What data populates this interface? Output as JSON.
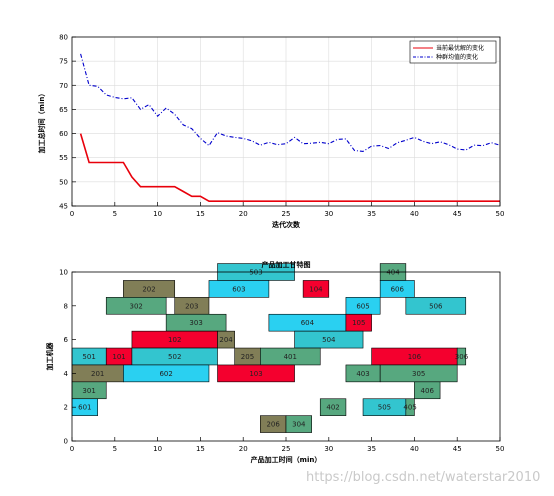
{
  "watermark": "https://blog.csdn.net/waterstar2010",
  "chart_data": [
    {
      "type": "line",
      "xlabel": "迭代次数",
      "ylabel": "加工总时间（min）",
      "xlim": [
        0,
        50
      ],
      "ylim": [
        45,
        80
      ],
      "xticks": [
        0,
        5,
        10,
        15,
        20,
        25,
        30,
        35,
        40,
        45,
        50
      ],
      "yticks": [
        45,
        50,
        55,
        60,
        65,
        70,
        75,
        80
      ],
      "grid": true,
      "legend_position": "top-right",
      "series": [
        {
          "name": "当前最优解的变化",
          "color": "#e8000b",
          "style": "solid",
          "points": [
            [
              1,
              60
            ],
            [
              2,
              54
            ],
            [
              3,
              54
            ],
            [
              4,
              54
            ],
            [
              5,
              54
            ],
            [
              6,
              54
            ],
            [
              7,
              51
            ],
            [
              8,
              49
            ],
            [
              9,
              49
            ],
            [
              10,
              49
            ],
            [
              11,
              49
            ],
            [
              12,
              49
            ],
            [
              13,
              48
            ],
            [
              14,
              47
            ],
            [
              15,
              47
            ],
            [
              16,
              46
            ],
            [
              17,
              46
            ],
            [
              18,
              46
            ],
            [
              19,
              46
            ],
            [
              20,
              46
            ],
            [
              25,
              46
            ],
            [
              30,
              46
            ],
            [
              35,
              46
            ],
            [
              40,
              46
            ],
            [
              45,
              46
            ],
            [
              50,
              46
            ]
          ]
        },
        {
          "name": "种群均值的变化",
          "color": "#0000cc",
          "style": "dashdot",
          "points": [
            [
              1,
              76.5
            ],
            [
              2,
              70
            ],
            [
              3,
              69.8
            ],
            [
              4,
              68
            ],
            [
              5,
              67.5
            ],
            [
              6,
              67.2
            ],
            [
              7,
              67.4
            ],
            [
              8,
              65
            ],
            [
              9,
              66
            ],
            [
              10,
              63.6
            ],
            [
              11,
              65.3
            ],
            [
              12,
              64
            ],
            [
              13,
              61.8
            ],
            [
              14,
              61
            ],
            [
              15,
              59
            ],
            [
              16,
              57.5
            ],
            [
              17,
              60.2
            ],
            [
              18,
              59.5
            ],
            [
              19,
              59.2
            ],
            [
              20,
              59
            ],
            [
              21,
              58.5
            ],
            [
              22,
              57.6
            ],
            [
              23,
              58.2
            ],
            [
              24,
              57.7
            ],
            [
              25,
              57.9
            ],
            [
              26,
              59.2
            ],
            [
              27,
              57.9
            ],
            [
              28,
              58
            ],
            [
              29,
              58.2
            ],
            [
              30,
              57.9
            ],
            [
              31,
              58.8
            ],
            [
              32,
              58.9
            ],
            [
              33,
              56.5
            ],
            [
              34,
              56.3
            ],
            [
              35,
              57.4
            ],
            [
              36,
              57.5
            ],
            [
              37,
              56.9
            ],
            [
              38,
              58.1
            ],
            [
              39,
              58.6
            ],
            [
              40,
              59.2
            ],
            [
              41,
              58.4
            ],
            [
              42,
              57.9
            ],
            [
              43,
              58.3
            ],
            [
              44,
              57.7
            ],
            [
              45,
              56.8
            ],
            [
              46,
              56.6
            ],
            [
              47,
              57.6
            ],
            [
              48,
              57.5
            ],
            [
              49,
              58.1
            ],
            [
              50,
              57.6
            ]
          ]
        }
      ]
    },
    {
      "type": "gantt",
      "title": "产品加工甘特图",
      "xlabel": "产品加工时间（min）",
      "ylabel": "加工机器",
      "xlim": [
        0,
        50
      ],
      "ylim": [
        0,
        10
      ],
      "xticks": [
        0,
        5,
        10,
        15,
        20,
        25,
        30,
        35,
        40,
        45,
        50
      ],
      "yticks": [
        0,
        2,
        4,
        6,
        8,
        10
      ],
      "grid": false,
      "colors": {
        "olive": "#817e57",
        "teal": "#33c5cf",
        "sky": "#2ad0f1",
        "red": "#f4002e",
        "green": "#57a87f"
      },
      "tasks": [
        {
          "label": "503",
          "machine": 10,
          "start": 17,
          "end": 26,
          "color": "teal"
        },
        {
          "label": "404",
          "machine": 10,
          "start": 36,
          "end": 39,
          "color": "green"
        },
        {
          "label": "202",
          "machine": 9,
          "start": 6,
          "end": 12,
          "color": "olive"
        },
        {
          "label": "603",
          "machine": 9,
          "start": 16,
          "end": 23,
          "color": "sky"
        },
        {
          "label": "104",
          "machine": 9,
          "start": 27,
          "end": 30,
          "color": "red"
        },
        {
          "label": "606",
          "machine": 9,
          "start": 36,
          "end": 40,
          "color": "sky"
        },
        {
          "label": "302",
          "machine": 8,
          "start": 4,
          "end": 11,
          "color": "green"
        },
        {
          "label": "203",
          "machine": 8,
          "start": 12,
          "end": 16,
          "color": "olive"
        },
        {
          "label": "605",
          "machine": 8,
          "start": 32,
          "end": 36,
          "color": "sky"
        },
        {
          "label": "506",
          "machine": 8,
          "start": 39,
          "end": 46,
          "color": "teal"
        },
        {
          "label": "303",
          "machine": 7,
          "start": 11,
          "end": 18,
          "color": "green"
        },
        {
          "label": "604",
          "machine": 7,
          "start": 23,
          "end": 32,
          "color": "sky"
        },
        {
          "label": "105",
          "machine": 7,
          "start": 32,
          "end": 35,
          "color": "red"
        },
        {
          "label": "102",
          "machine": 6,
          "start": 7,
          "end": 17,
          "color": "red"
        },
        {
          "label": "204",
          "machine": 6,
          "start": 17,
          "end": 19,
          "color": "olive"
        },
        {
          "label": "504",
          "machine": 6,
          "start": 26,
          "end": 34,
          "color": "teal"
        },
        {
          "label": "501",
          "machine": 5,
          "start": 0,
          "end": 4,
          "color": "teal"
        },
        {
          "label": "101",
          "machine": 5,
          "start": 4,
          "end": 7,
          "color": "red"
        },
        {
          "label": "502",
          "machine": 5,
          "start": 7,
          "end": 17,
          "color": "teal"
        },
        {
          "label": "205",
          "machine": 5,
          "start": 19,
          "end": 22,
          "color": "olive"
        },
        {
          "label": "401",
          "machine": 5,
          "start": 22,
          "end": 29,
          "color": "green"
        },
        {
          "label": "106",
          "machine": 5,
          "start": 35,
          "end": 45,
          "color": "red"
        },
        {
          "label": "306",
          "machine": 5,
          "start": 45,
          "end": 46,
          "color": "green"
        },
        {
          "label": "201",
          "machine": 4,
          "start": 0,
          "end": 6,
          "color": "olive"
        },
        {
          "label": "602",
          "machine": 4,
          "start": 6,
          "end": 16,
          "color": "sky"
        },
        {
          "label": "103",
          "machine": 4,
          "start": 17,
          "end": 26,
          "color": "red"
        },
        {
          "label": "403",
          "machine": 4,
          "start": 32,
          "end": 36,
          "color": "green"
        },
        {
          "label": "305",
          "machine": 4,
          "start": 36,
          "end": 45,
          "color": "green"
        },
        {
          "label": "301",
          "machine": 3,
          "start": 0,
          "end": 4,
          "color": "green"
        },
        {
          "label": "406",
          "machine": 3,
          "start": 40,
          "end": 43,
          "color": "green"
        },
        {
          "label": "601",
          "machine": 2,
          "start": 0,
          "end": 3,
          "color": "sky"
        },
        {
          "label": "402",
          "machine": 2,
          "start": 29,
          "end": 32,
          "color": "green"
        },
        {
          "label": "505",
          "machine": 2,
          "start": 34,
          "end": 39,
          "color": "teal"
        },
        {
          "label": "405",
          "machine": 2,
          "start": 39,
          "end": 40,
          "color": "green"
        },
        {
          "label": "206",
          "machine": 1,
          "start": 22,
          "end": 25,
          "color": "olive"
        },
        {
          "label": "304",
          "machine": 1,
          "start": 25,
          "end": 28,
          "color": "green"
        }
      ]
    }
  ]
}
